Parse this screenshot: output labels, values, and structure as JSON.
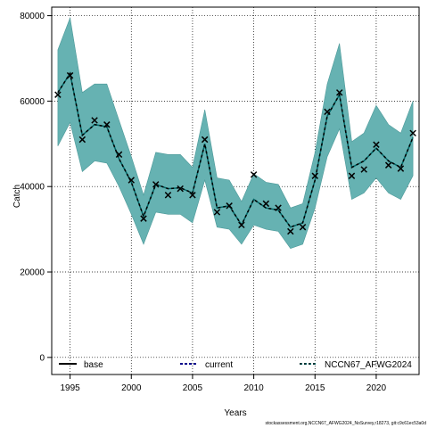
{
  "chart_data": {
    "type": "line",
    "title": "",
    "xlabel": "Years",
    "ylabel": "Catch",
    "xlim": [
      1993.5,
      2023.5
    ],
    "ylim": [
      -4000,
      82000
    ],
    "xticks": [
      1995,
      2000,
      2005,
      2010,
      2015,
      2020
    ],
    "yticks": [
      0,
      20000,
      40000,
      60000,
      80000
    ],
    "x_tick_labels": [
      "1995",
      "2000",
      "2005",
      "2010",
      "2015",
      "2020"
    ],
    "y_tick_labels": [
      "0",
      "20000",
      "40000",
      "60000",
      "80000"
    ],
    "grid": true,
    "colors": {
      "band": "#66b2b2",
      "line": "#000000",
      "current": "#00008b",
      "run": "#006666"
    },
    "x": [
      1994,
      1995,
      1996,
      1997,
      1998,
      1999,
      2000,
      2001,
      2002,
      2003,
      2004,
      2005,
      2006,
      2007,
      2008,
      2009,
      2010,
      2011,
      2012,
      2013,
      2014,
      2015,
      2016,
      2017,
      2018,
      2019,
      2020,
      2021,
      2022,
      2023
    ],
    "observed": [
      61500,
      66000,
      51000,
      55500,
      54500,
      47500,
      41500,
      32500,
      40500,
      38000,
      39500,
      38000,
      51000,
      34000,
      35500,
      31000,
      42800,
      36000,
      35000,
      29500,
      30500,
      42500,
      57500,
      62000,
      42500,
      44000,
      49800,
      45000,
      44200,
      52500
    ],
    "estimate": [
      62000,
      66500,
      52000,
      54500,
      54000,
      46500,
      41000,
      33000,
      40500,
      39500,
      39700,
      38500,
      50000,
      35000,
      35500,
      31000,
      37000,
      35000,
      34500,
      30500,
      31500,
      41500,
      56500,
      61500,
      44500,
      46000,
      49000,
      46000,
      44500,
      51500
    ],
    "lower": [
      49500,
      55000,
      43500,
      46000,
      45500,
      40000,
      33500,
      26500,
      34000,
      33500,
      33500,
      31500,
      41500,
      30500,
      30000,
      26500,
      31000,
      30000,
      29500,
      25500,
      26500,
      35000,
      47000,
      53500,
      37000,
      38500,
      42000,
      38500,
      37000,
      42500
    ],
    "upper": [
      72000,
      79500,
      62000,
      64000,
      64000,
      55500,
      47000,
      38000,
      48000,
      47500,
      47500,
      44500,
      58000,
      42000,
      41500,
      36500,
      43000,
      41000,
      40500,
      35000,
      36000,
      48000,
      64000,
      73500,
      50500,
      52500,
      59000,
      54500,
      52500,
      60000
    ],
    "legend": {
      "placement": "bottom",
      "entries": [
        {
          "label": "base",
          "style": "solid"
        },
        {
          "label": "current",
          "style": "dashed"
        },
        {
          "label": "NCCN67_AFWG2024",
          "style": "dashed"
        }
      ]
    }
  },
  "footer": "stockassessment.org,NCCN67_AFWG2024_NoSurvey,r18273, git:c9c61ec53a0d"
}
